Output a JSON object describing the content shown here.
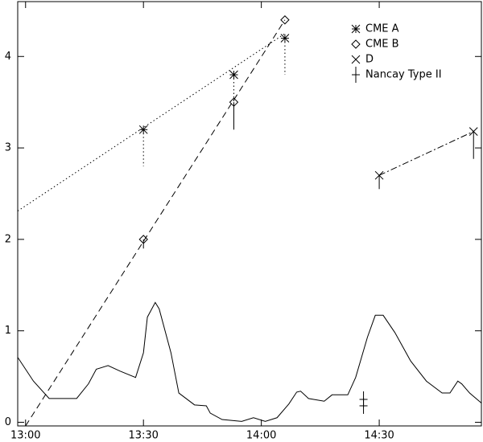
{
  "chart_data": {
    "type": "line",
    "xlim": [
      "12:58",
      "14:56"
    ],
    "xticks": [
      "13:00",
      "13:30",
      "14:00",
      "14:30"
    ],
    "ylim": [
      -0.04,
      4.6
    ],
    "yticks": [
      0,
      1,
      2,
      3,
      4
    ],
    "legend": "upper right",
    "series": [
      {
        "name": "CME A",
        "marker": "asterisk",
        "color": "#000000",
        "line_style": "dotted",
        "error_style": "dotted",
        "x": [
          "13:30",
          "13:53",
          "14:06"
        ],
        "values": [
          3.2,
          3.8,
          4.2
        ],
        "errors": [
          0.4,
          0.3,
          0.4
        ],
        "fit_x": [
          "12:58",
          "14:06"
        ],
        "fit_y": [
          2.31,
          4.25
        ]
      },
      {
        "name": "CME B",
        "marker": "diamond",
        "color": "#000000",
        "line_style": "dashed",
        "error_style": "solid",
        "x": [
          "13:30",
          "13:53",
          "14:06"
        ],
        "values": [
          2.0,
          3.5,
          4.4
        ],
        "errors": [
          0.1,
          0.3,
          0
        ],
        "fit_x": [
          "13:00",
          "14:06"
        ],
        "fit_y": [
          -0.04,
          4.4
        ]
      },
      {
        "name": "D",
        "marker": "cross",
        "color": "#000000",
        "line_style": "dashdot",
        "error_style": "solid",
        "connect": true,
        "x": [
          "14:30",
          "14:54"
        ],
        "values": [
          2.7,
          3.18
        ],
        "errors": [
          0.15,
          0.3
        ]
      },
      {
        "name": "Nancay Type II",
        "marker": "plus",
        "color": "#000000",
        "x": [
          "14:26",
          "14:26"
        ],
        "values": [
          0.18,
          0.25
        ]
      },
      {
        "marker": "none",
        "color": "#000000",
        "line_style": "solid",
        "connect": true,
        "x": [
          "12:58",
          "13:02",
          "13:06",
          "13:13",
          "13:16",
          "13:18",
          "13:21",
          "13:24",
          "13:28",
          "13:30",
          "13:31",
          "13:33",
          "13:34",
          "13:37",
          "13:39",
          "13:43",
          "13:46",
          "13:47",
          "13:50",
          "13:55",
          "13:58",
          "14:01",
          "14:04",
          "14:07",
          "14:09",
          "14:10",
          "14:12",
          "14:16",
          "14:18",
          "14:22",
          "14:24",
          "14:27",
          "14:29",
          "14:31",
          "14:34",
          "14:38",
          "14:42",
          "14:46",
          "14:48",
          "14:50",
          "14:51",
          "14:53",
          "14:56"
        ],
        "values": [
          0.71,
          0.45,
          0.26,
          0.26,
          0.42,
          0.58,
          0.62,
          0.56,
          0.49,
          0.76,
          1.15,
          1.31,
          1.24,
          0.76,
          0.32,
          0.19,
          0.18,
          0.1,
          0.03,
          0.01,
          0.05,
          0.01,
          0.05,
          0.2,
          0.33,
          0.34,
          0.26,
          0.23,
          0.3,
          0.3,
          0.49,
          0.93,
          1.17,
          1.17,
          0.98,
          0.67,
          0.45,
          0.32,
          0.32,
          0.45,
          0.42,
          0.32,
          0.21
        ]
      }
    ]
  }
}
